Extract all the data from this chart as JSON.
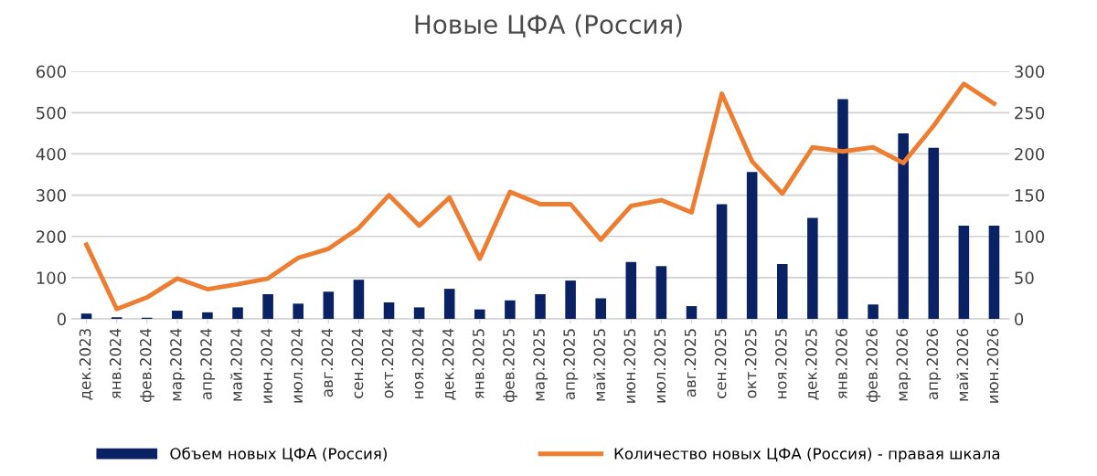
{
  "chart_data": {
    "type": "bar",
    "title": "Новые ЦФА (Россия)",
    "categories": [
      "дек.2023",
      "янв.2024",
      "фев.2024",
      "мар.2024",
      "апр.2024",
      "май.2024",
      "июн.2024",
      "июл.2024",
      "авг.2024",
      "сен.2024",
      "окт.2024",
      "ноя.2024",
      "дек.2024",
      "янв.2025",
      "фев.2025",
      "мар.2025",
      "апр.2025",
      "май.2025",
      "июн.2025",
      "июл.2025",
      "авг.2025",
      "сен.2025",
      "окт.2025",
      "ноя.2025",
      "дек.2025",
      "янв.2026",
      "фев.2026",
      "мар.2026",
      "апр.2026",
      "май.2026",
      "июн.2026"
    ],
    "series": [
      {
        "name": "Объем новых ЦФА (Россия)",
        "color": "#0a2263",
        "values": [
          13,
          4,
          3,
          20,
          16,
          28,
          60,
          37,
          66,
          95,
          40,
          28,
          73,
          23,
          45,
          60,
          93,
          50,
          138,
          128,
          31,
          278,
          356,
          133,
          245,
          533,
          35,
          450,
          415,
          226,
          226
        ]
      },
      {
        "name": "Количество новых ЦФА (Россия) - правая шкала",
        "type": "line",
        "axis": "y2",
        "color": "#ed7d31",
        "values": [
          90,
          12,
          26,
          49,
          36,
          42,
          49,
          74,
          85,
          110,
          150,
          113,
          147,
          73,
          154,
          139,
          139,
          96,
          137,
          144,
          129,
          273,
          191,
          152,
          208,
          203,
          208,
          189,
          234,
          285,
          261
        ]
      }
    ],
    "ylim": [
      0,
      600
    ],
    "yticks": [
      0,
      100,
      200,
      300,
      400,
      500,
      600
    ],
    "y2lim": [
      0,
      300
    ],
    "y2ticks": [
      0,
      50,
      100,
      150,
      200,
      250,
      300
    ],
    "grid": "y",
    "legend": "bottom"
  }
}
